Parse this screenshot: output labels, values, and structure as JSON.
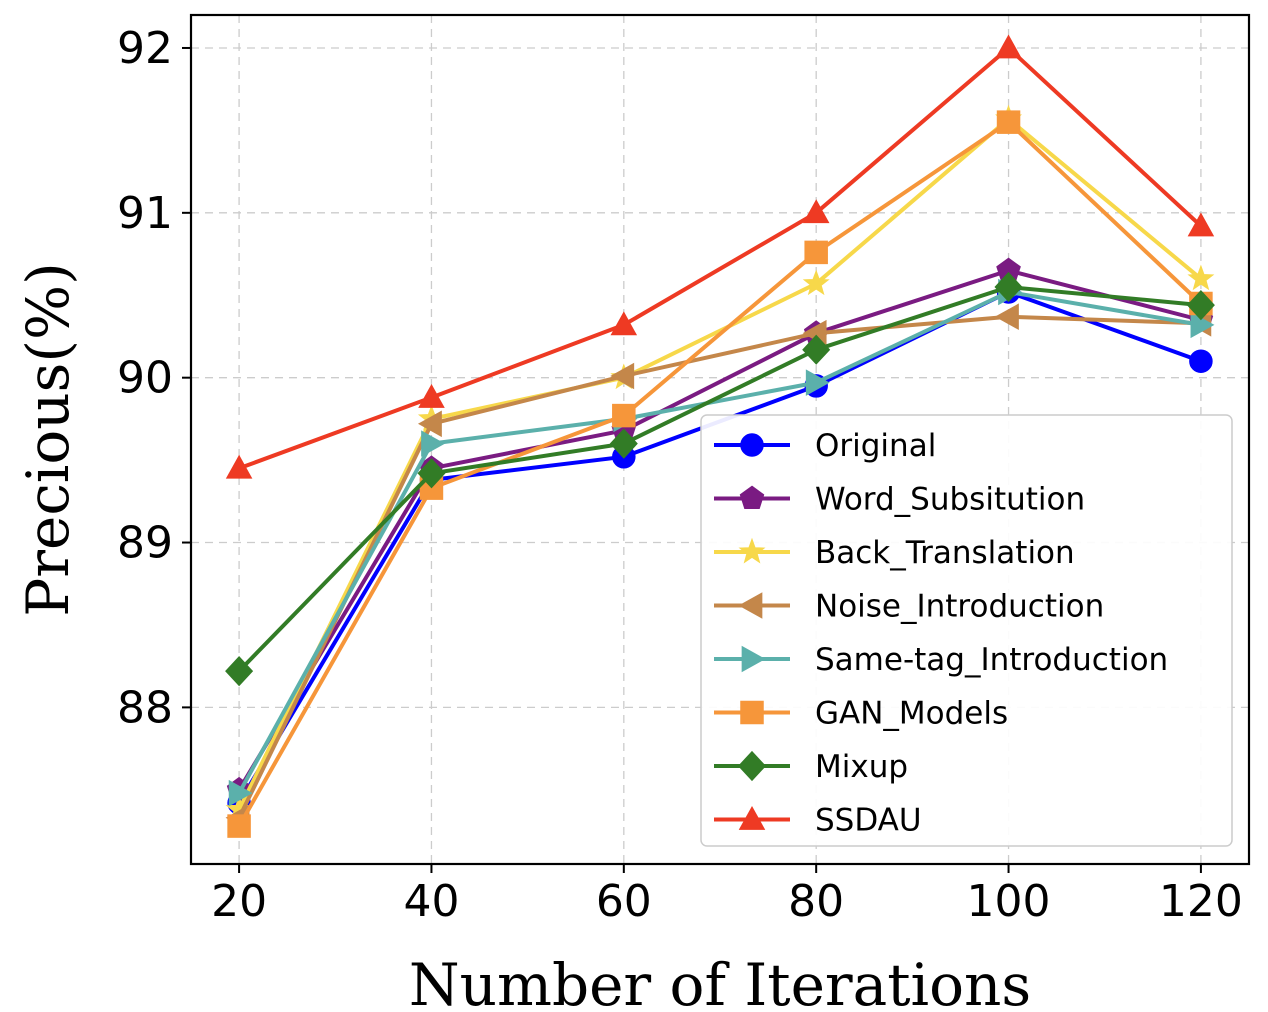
{
  "chart_data": {
    "type": "line",
    "title": "",
    "xlabel": "Number of Iterations",
    "ylabel": "Precious(%)",
    "x": [
      20,
      40,
      60,
      80,
      100,
      120
    ],
    "xticks": [
      "20",
      "40",
      "60",
      "80",
      "100",
      "120"
    ],
    "yticks": [
      "88",
      "89",
      "90",
      "91",
      "92"
    ],
    "xlim": [
      15,
      125
    ],
    "ylim": [
      87.05,
      92.2
    ],
    "grid": true,
    "legend_position": "lower-right",
    "series": [
      {
        "name": "Original",
        "color": "#0000ff",
        "marker": "circle",
        "values": [
          87.42,
          89.38,
          89.52,
          89.95,
          90.52,
          90.1
        ]
      },
      {
        "name": "Word_Subsitution",
        "color": "#7a1b82",
        "marker": "pentagon",
        "values": [
          87.5,
          89.45,
          89.68,
          90.27,
          90.65,
          90.35
        ]
      },
      {
        "name": "Back_Translation",
        "color": "#f7d84a",
        "marker": "star",
        "values": [
          87.38,
          89.75,
          90.0,
          90.57,
          91.57,
          90.6
        ]
      },
      {
        "name": "Noise_Introduction",
        "color": "#c4874a",
        "marker": "triangle-left",
        "values": [
          87.33,
          89.72,
          90.01,
          90.27,
          90.37,
          90.33
        ]
      },
      {
        "name": "Same-tag_Introduction",
        "color": "#5bb0ab",
        "marker": "triangle-right",
        "values": [
          87.48,
          89.6,
          89.75,
          89.97,
          90.52,
          90.32
        ]
      },
      {
        "name": "GAN_Models",
        "color": "#f6963a",
        "marker": "square",
        "values": [
          87.28,
          89.33,
          89.77,
          90.76,
          91.55,
          90.45
        ]
      },
      {
        "name": "Mixup",
        "color": "#327c26",
        "marker": "diamond",
        "values": [
          88.22,
          89.42,
          89.6,
          90.17,
          90.55,
          90.44
        ]
      },
      {
        "name": "SSDAU",
        "color": "#ee3a23",
        "marker": "triangle-up",
        "values": [
          89.45,
          89.88,
          90.32,
          91.0,
          92.0,
          90.92
        ]
      }
    ]
  }
}
